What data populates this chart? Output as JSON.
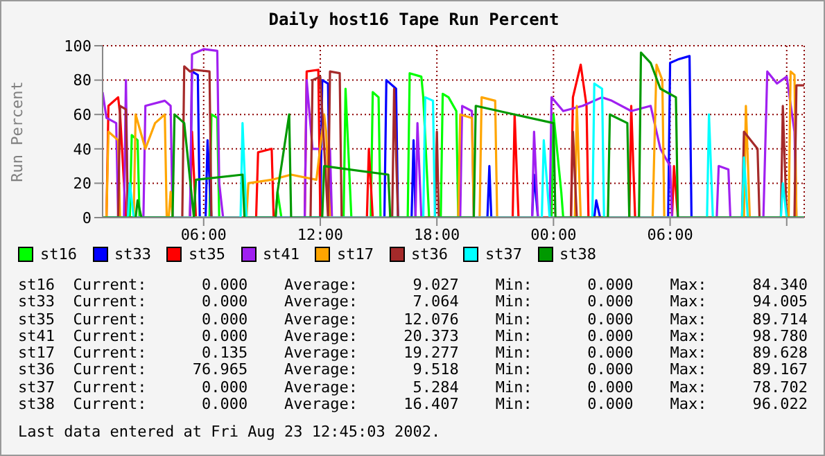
{
  "chart_data": {
    "type": "line",
    "title": "Daily host16 Tape Run Percent",
    "ylabel": "Run Percent",
    "xlim": [
      "2002-08-22T00:48",
      "2002-08-23T12:54"
    ],
    "xticks": [
      {
        "value": "2002-08-22T06:00",
        "label": "06:00"
      },
      {
        "value": "2002-08-22T12:00",
        "label": "12:00"
      },
      {
        "value": "2002-08-22T18:00",
        "label": "18:00"
      },
      {
        "value": "2002-08-23T00:00",
        "label": "00:00"
      },
      {
        "value": "2002-08-23T06:00",
        "label": "06:00"
      },
      {
        "value": "2002-08-23T12:00",
        "label": null
      }
    ],
    "ylim": [
      0,
      100
    ],
    "yticks": [
      0,
      20,
      40,
      60,
      80,
      100
    ],
    "grid": true,
    "legend": "bottom",
    "series": [
      {
        "name": "st16",
        "color": "#00ff00",
        "x": [
          "2002-08-22T00:48",
          "2002-08-22T02:12",
          "2002-08-22T02:18",
          "2002-08-22T02:36",
          "2002-08-22T02:42",
          "2002-08-22T06:18",
          "2002-08-22T06:24",
          "2002-08-22T06:42",
          "2002-08-22T06:48",
          "2002-08-22T09:42",
          "2002-08-22T09:48",
          "2002-08-22T10:00",
          "2002-08-22T13:12",
          "2002-08-22T13:18",
          "2002-08-22T13:36",
          "2002-08-22T14:36",
          "2002-08-22T14:42",
          "2002-08-22T15:00",
          "2002-08-22T15:06",
          "2002-08-22T16:30",
          "2002-08-22T16:36",
          "2002-08-22T17:12",
          "2002-08-22T17:18",
          "2002-08-22T17:36",
          "2002-08-22T18:12",
          "2002-08-22T18:18",
          "2002-08-22T18:36",
          "2002-08-22T19:00",
          "2002-08-22T19:06",
          "2002-08-22T23:54",
          "2002-08-23T00:00",
          "2002-08-23T00:24",
          "2002-08-23T00:30",
          "2002-08-23T12:54"
        ],
        "values": [
          0,
          0,
          48,
          45,
          0,
          0,
          60,
          58,
          0,
          0,
          15,
          0,
          0,
          75,
          0,
          0,
          73,
          70,
          0,
          0,
          84,
          82,
          70,
          0,
          0,
          72,
          70,
          62,
          0,
          0,
          60,
          15,
          0,
          0
        ]
      },
      {
        "name": "st33",
        "color": "#0000ff",
        "x": [
          "2002-08-22T00:48",
          "2002-08-22T05:18",
          "2002-08-22T05:24",
          "2002-08-22T05:42",
          "2002-08-22T05:48",
          "2002-08-22T06:06",
          "2002-08-22T06:12",
          "2002-08-22T06:24",
          "2002-08-22T12:00",
          "2002-08-22T12:06",
          "2002-08-22T12:24",
          "2002-08-22T12:30",
          "2002-08-22T15:18",
          "2002-08-22T15:24",
          "2002-08-22T15:54",
          "2002-08-22T16:00",
          "2002-08-22T16:42",
          "2002-08-22T16:48",
          "2002-08-22T16:54",
          "2002-08-22T20:36",
          "2002-08-22T20:42",
          "2002-08-22T20:48",
          "2002-08-22T22:54",
          "2002-08-22T23:00",
          "2002-08-22T23:12",
          "2002-08-23T02:06",
          "2002-08-23T02:12",
          "2002-08-23T02:24",
          "2002-08-23T05:54",
          "2002-08-23T06:00",
          "2002-08-23T06:24",
          "2002-08-23T07:00",
          "2002-08-23T07:06",
          "2002-08-23T12:54"
        ],
        "values": [
          0,
          0,
          85,
          83,
          0,
          0,
          45,
          0,
          0,
          80,
          78,
          0,
          0,
          80,
          75,
          0,
          0,
          45,
          0,
          0,
          30,
          0,
          0,
          25,
          0,
          0,
          10,
          0,
          0,
          90,
          92,
          94,
          0,
          0
        ]
      },
      {
        "name": "st35",
        "color": "#ff0000",
        "x": [
          "2002-08-22T00:48",
          "2002-08-22T01:00",
          "2002-08-22T01:06",
          "2002-08-22T01:36",
          "2002-08-22T01:42",
          "2002-08-22T02:00",
          "2002-08-22T05:18",
          "2002-08-22T05:24",
          "2002-08-22T05:36",
          "2002-08-22T08:42",
          "2002-08-22T08:48",
          "2002-08-22T09:30",
          "2002-08-22T09:36",
          "2002-08-22T11:12",
          "2002-08-22T11:18",
          "2002-08-22T11:54",
          "2002-08-22T12:00",
          "2002-08-22T14:24",
          "2002-08-22T14:30",
          "2002-08-22T14:42",
          "2002-08-22T21:54",
          "2002-08-22T22:00",
          "2002-08-22T22:12",
          "2002-08-23T00:54",
          "2002-08-23T01:00",
          "2002-08-23T01:24",
          "2002-08-23T01:42",
          "2002-08-23T01:48",
          "2002-08-23T03:54",
          "2002-08-23T04:00",
          "2002-08-23T04:12",
          "2002-08-23T06:06",
          "2002-08-23T06:12",
          "2002-08-23T06:24",
          "2002-08-23T12:54"
        ],
        "values": [
          0,
          0,
          65,
          70,
          60,
          0,
          0,
          50,
          0,
          0,
          38,
          40,
          0,
          0,
          85,
          86,
          0,
          0,
          40,
          0,
          0,
          60,
          0,
          0,
          70,
          89,
          65,
          0,
          0,
          65,
          0,
          0,
          30,
          0,
          0
        ]
      },
      {
        "name": "st41",
        "color": "#a020f0",
        "x": [
          "2002-08-22T00:48",
          "2002-08-22T01:00",
          "2002-08-22T01:30",
          "2002-08-22T01:36",
          "2002-08-22T01:54",
          "2002-08-22T02:00",
          "2002-08-22T02:06",
          "2002-08-22T02:54",
          "2002-08-22T03:00",
          "2002-08-22T04:00",
          "2002-08-22T04:18",
          "2002-08-22T04:24",
          "2002-08-22T05:18",
          "2002-08-22T05:24",
          "2002-08-22T06:00",
          "2002-08-22T06:42",
          "2002-08-22T06:48",
          "2002-08-22T07:00",
          "2002-08-22T11:12",
          "2002-08-22T11:18",
          "2002-08-22T11:36",
          "2002-08-22T11:48",
          "2002-08-22T12:30",
          "2002-08-22T12:36",
          "2002-08-22T16:54",
          "2002-08-22T17:00",
          "2002-08-22T17:12",
          "2002-08-22T19:12",
          "2002-08-22T19:18",
          "2002-08-22T19:48",
          "2002-08-22T19:54",
          "2002-08-22T22:54",
          "2002-08-22T23:00",
          "2002-08-22T23:12",
          "2002-08-22T23:48",
          "2002-08-22T23:54",
          "2002-08-23T00:30",
          "2002-08-23T01:30",
          "2002-08-23T02:30",
          "2002-08-23T03:00",
          "2002-08-23T04:00",
          "2002-08-23T05:00",
          "2002-08-23T05:30",
          "2002-08-23T06:00",
          "2002-08-23T06:06",
          "2002-08-23T08:24",
          "2002-08-23T08:30",
          "2002-08-23T09:00",
          "2002-08-23T09:06",
          "2002-08-23T10:48",
          "2002-08-23T11:00",
          "2002-08-23T11:30",
          "2002-08-23T12:00",
          "2002-08-23T12:24",
          "2002-08-23T12:30",
          "2002-08-23T12:54"
        ],
        "values": [
          73,
          58,
          55,
          0,
          0,
          80,
          0,
          0,
          65,
          68,
          65,
          0,
          0,
          95,
          98,
          97,
          20,
          0,
          0,
          80,
          40,
          40,
          40,
          0,
          0,
          55,
          0,
          0,
          65,
          62,
          0,
          0,
          50,
          0,
          0,
          70,
          62,
          65,
          70,
          68,
          62,
          65,
          40,
          30,
          0,
          0,
          30,
          28,
          0,
          0,
          85,
          78,
          82,
          50,
          0,
          0
        ]
      },
      {
        "name": "st17",
        "color": "#ffa500",
        "x": [
          "2002-08-22T00:48",
          "2002-08-22T01:00",
          "2002-08-22T01:06",
          "2002-08-22T01:36",
          "2002-08-22T01:42",
          "2002-08-22T02:24",
          "2002-08-22T02:30",
          "2002-08-22T03:00",
          "2002-08-22T03:30",
          "2002-08-22T04:00",
          "2002-08-22T04:06",
          "2002-08-22T04:12",
          "2002-08-22T04:18",
          "2002-08-22T04:24",
          "2002-08-22T08:12",
          "2002-08-22T08:18",
          "2002-08-22T09:30",
          "2002-08-22T10:30",
          "2002-08-22T11:48",
          "2002-08-22T12:12",
          "2002-08-22T12:18",
          "2002-08-22T12:30",
          "2002-08-22T19:06",
          "2002-08-22T19:12",
          "2002-08-22T19:48",
          "2002-08-22T19:54",
          "2002-08-22T20:12",
          "2002-08-22T20:18",
          "2002-08-22T21:00",
          "2002-08-22T21:06",
          "2002-08-23T01:06",
          "2002-08-23T01:12",
          "2002-08-23T01:24",
          "2002-08-23T05:06",
          "2002-08-23T05:18",
          "2002-08-23T05:36",
          "2002-08-23T05:42",
          "2002-08-23T09:48",
          "2002-08-23T09:54",
          "2002-08-23T10:06",
          "2002-08-23T12:06",
          "2002-08-23T12:12",
          "2002-08-23T12:24",
          "2002-08-23T12:30",
          "2002-08-23T12:54"
        ],
        "values": [
          0,
          0,
          50,
          45,
          0,
          0,
          60,
          40,
          55,
          60,
          0,
          0,
          15,
          0,
          0,
          20,
          22,
          25,
          22,
          60,
          50,
          0,
          0,
          60,
          58,
          0,
          0,
          70,
          68,
          0,
          0,
          65,
          0,
          0,
          89,
          80,
          0,
          0,
          65,
          0,
          0,
          85,
          83,
          0,
          0
        ]
      },
      {
        "name": "st36",
        "color": "#a52a2a",
        "x": [
          "2002-08-22T00:48",
          "2002-08-22T01:36",
          "2002-08-22T01:42",
          "2002-08-22T02:00",
          "2002-08-22T02:06",
          "2002-08-22T04:54",
          "2002-08-22T05:00",
          "2002-08-22T05:18",
          "2002-08-22T05:30",
          "2002-08-22T06:18",
          "2002-08-22T06:24",
          "2002-08-22T11:30",
          "2002-08-22T11:36",
          "2002-08-22T12:00",
          "2002-08-22T12:24",
          "2002-08-22T12:30",
          "2002-08-22T13:00",
          "2002-08-22T13:06",
          "2002-08-22T15:42",
          "2002-08-22T15:48",
          "2002-08-22T16:00",
          "2002-08-22T17:54",
          "2002-08-22T18:00",
          "2002-08-22T18:06",
          "2002-08-23T00:54",
          "2002-08-23T01:00",
          "2002-08-23T01:12",
          "2002-08-23T09:42",
          "2002-08-23T09:48",
          "2002-08-23T10:30",
          "2002-08-23T10:36",
          "2002-08-23T11:42",
          "2002-08-23T11:48",
          "2002-08-23T12:00",
          "2002-08-23T12:24",
          "2002-08-23T12:30",
          "2002-08-23T12:54"
        ],
        "values": [
          0,
          0,
          65,
          63,
          0,
          0,
          88,
          85,
          86,
          85,
          0,
          0,
          80,
          82,
          0,
          85,
          84,
          0,
          0,
          75,
          0,
          0,
          50,
          0,
          0,
          50,
          0,
          0,
          50,
          40,
          0,
          0,
          65,
          0,
          0,
          77,
          77
        ]
      },
      {
        "name": "st37",
        "color": "#00ffff",
        "x": [
          "2002-08-22T00:48",
          "2002-08-22T02:06",
          "2002-08-22T02:12",
          "2002-08-22T02:24",
          "2002-08-22T07:54",
          "2002-08-22T08:00",
          "2002-08-22T08:12",
          "2002-08-22T17:18",
          "2002-08-22T17:24",
          "2002-08-22T17:48",
          "2002-08-22T17:54",
          "2002-08-22T23:24",
          "2002-08-22T23:30",
          "2002-08-22T23:48",
          "2002-08-23T02:00",
          "2002-08-23T02:06",
          "2002-08-23T02:30",
          "2002-08-23T02:36",
          "2002-08-23T07:54",
          "2002-08-23T08:00",
          "2002-08-23T08:12",
          "2002-08-23T09:42",
          "2002-08-23T09:48",
          "2002-08-23T10:00",
          "2002-08-23T11:42",
          "2002-08-23T11:48",
          "2002-08-23T12:00",
          "2002-08-23T12:54"
        ],
        "values": [
          0,
          0,
          20,
          0,
          0,
          55,
          0,
          0,
          70,
          68,
          0,
          0,
          45,
          0,
          0,
          78,
          75,
          0,
          0,
          60,
          0,
          0,
          35,
          0,
          0,
          20,
          0,
          0
        ]
      },
      {
        "name": "st38",
        "color": "#009900",
        "x": [
          "2002-08-22T00:48",
          "2002-08-22T02:30",
          "2002-08-22T02:36",
          "2002-08-22T02:48",
          "2002-08-22T04:24",
          "2002-08-22T04:30",
          "2002-08-22T05:00",
          "2002-08-22T05:30",
          "2002-08-22T05:36",
          "2002-08-22T08:00",
          "2002-08-22T08:06",
          "2002-08-22T09:42",
          "2002-08-22T09:48",
          "2002-08-22T10:24",
          "2002-08-22T10:30",
          "2002-08-22T11:00",
          "2002-08-22T11:06",
          "2002-08-22T12:06",
          "2002-08-22T12:12",
          "2002-08-22T15:30",
          "2002-08-22T15:36",
          "2002-08-22T19:54",
          "2002-08-22T20:00",
          "2002-08-22T22:00",
          "2002-08-23T00:00",
          "2002-08-23T00:06",
          "2002-08-23T02:48",
          "2002-08-23T02:54",
          "2002-08-23T03:48",
          "2002-08-23T03:54",
          "2002-08-23T04:24",
          "2002-08-23T04:30",
          "2002-08-23T05:00",
          "2002-08-23T05:30",
          "2002-08-23T06:18",
          "2002-08-23T06:24",
          "2002-08-23T12:54"
        ],
        "values": [
          0,
          0,
          10,
          0,
          0,
          60,
          55,
          0,
          22,
          25,
          0,
          0,
          15,
          60,
          0,
          0,
          0,
          0,
          30,
          25,
          0,
          0,
          65,
          60,
          55,
          0,
          0,
          60,
          55,
          0,
          0,
          96,
          90,
          75,
          70,
          0,
          0
        ]
      }
    ],
    "annotations": [
      "st16  Current:      0.000    Average:      9.027    Min:      0.000    Max:     84.340",
      "st33  Current:      0.000    Average:      7.064    Min:      0.000    Max:     94.005",
      "st35  Current:      0.000    Average:     12.076    Min:      0.000    Max:     89.714",
      "st41  Current:      0.000    Average:     20.373    Min:      0.000    Max:     98.780",
      "st17  Current:      0.135    Average:     19.277    Min:      0.000    Max:     89.628",
      "st36  Current:     76.965    Average:      9.518    Min:      0.000    Max:     89.167",
      "st37  Current:      0.000    Average:      5.284    Min:      0.000    Max:     78.702",
      "st38  Current:      0.000    Average:     16.407    Min:      0.000    Max:     96.022",
      "Last data entered at Fri Aug 23 12:45:03 2002."
    ]
  }
}
